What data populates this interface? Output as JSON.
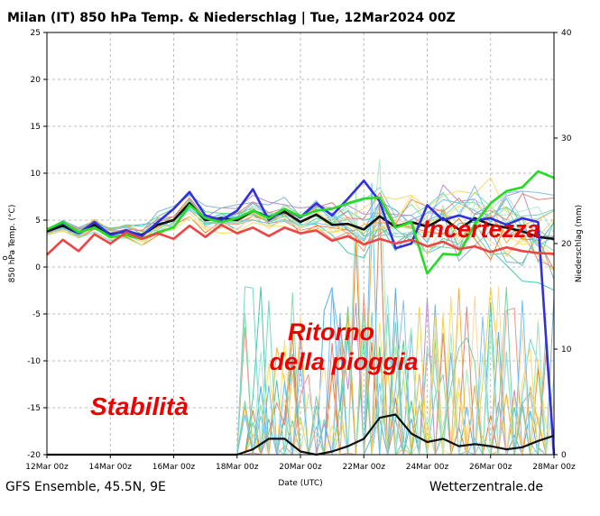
{
  "chart_data": {
    "type": "line",
    "title": "Milan  (IT)  850 hPa Temp. & Niederschlag | Tue, 12Mar2024 00Z",
    "xlabel": "Date (UTC)",
    "ylabel_left": "850 hPa Temp. (°C)",
    "ylabel_left_prefix": "o",
    "ylabel_right": "Niederschlag (mm)",
    "x_ticks": [
      "12Mar 00z",
      "14Mar 00z",
      "16Mar 00z",
      "18Mar 00z",
      "20Mar 00z",
      "22Mar 00z",
      "24Mar 00z",
      "26Mar 00z",
      "28Mar 00z"
    ],
    "x_range_days": [
      0,
      16
    ],
    "ylim_left": [
      -20,
      25
    ],
    "ylim_right": [
      0,
      40
    ],
    "y_ticks_left": [
      25,
      20,
      15,
      10,
      5,
      0,
      -5,
      -10,
      -15,
      -20
    ],
    "y_ticks_right": [
      40,
      30,
      20,
      10,
      0
    ],
    "grid": true,
    "series": [
      {
        "role": "mean_temp",
        "color": "#111111",
        "points": [
          [
            0,
            3.8
          ],
          [
            0.5,
            4.4
          ],
          [
            1,
            3.6
          ],
          [
            1.5,
            4.5
          ],
          [
            2,
            3.5
          ],
          [
            2.5,
            3.8
          ],
          [
            3,
            3.4
          ],
          [
            3.5,
            4.5
          ],
          [
            4,
            5.0
          ],
          [
            4.5,
            6.8
          ],
          [
            5,
            5.0
          ],
          [
            5.5,
            5.2
          ],
          [
            6,
            5.0
          ],
          [
            6.5,
            6.0
          ],
          [
            7,
            5.3
          ],
          [
            7.5,
            5.9
          ],
          [
            8,
            4.8
          ],
          [
            8.5,
            5.6
          ],
          [
            9,
            4.5
          ],
          [
            9.5,
            4.6
          ],
          [
            10,
            4.0
          ],
          [
            10.5,
            5.4
          ],
          [
            11,
            4.3
          ],
          [
            11.5,
            4.8
          ],
          [
            12,
            4.3
          ],
          [
            12.5,
            5.2
          ],
          [
            13,
            4.0
          ],
          [
            13.5,
            5.2
          ],
          [
            14,
            4.5
          ],
          [
            14.5,
            4.2
          ],
          [
            15,
            3.8
          ],
          [
            15.5,
            3.2
          ],
          [
            16,
            3.0
          ]
        ]
      },
      {
        "role": "operational",
        "color": "#3030e0",
        "points": [
          [
            0,
            4.0
          ],
          [
            0.5,
            4.7
          ],
          [
            1,
            3.6
          ],
          [
            1.5,
            4.8
          ],
          [
            2,
            3.4
          ],
          [
            2.5,
            3.9
          ],
          [
            3,
            3.3
          ],
          [
            3.5,
            4.8
          ],
          [
            4,
            6.2
          ],
          [
            4.5,
            8.0
          ],
          [
            5,
            5.5
          ],
          [
            5.5,
            5.0
          ],
          [
            6,
            6.0
          ],
          [
            6.5,
            8.3
          ],
          [
            7,
            5.0
          ],
          [
            7.5,
            6.2
          ],
          [
            8,
            5.3
          ],
          [
            8.5,
            6.8
          ],
          [
            9,
            5.5
          ],
          [
            9.5,
            7.3
          ],
          [
            10,
            9.2
          ],
          [
            10.5,
            7.0
          ],
          [
            11,
            2.0
          ],
          [
            11.5,
            2.5
          ],
          [
            12,
            6.6
          ],
          [
            12.5,
            5.0
          ],
          [
            13,
            5.5
          ],
          [
            13.5,
            5.0
          ],
          [
            14,
            5.2
          ],
          [
            14.5,
            4.5
          ],
          [
            15,
            5.2
          ],
          [
            15.5,
            4.8
          ],
          [
            16,
            -20.0
          ]
        ]
      },
      {
        "role": "control",
        "color": "#22dd22",
        "points": [
          [
            0,
            4.0
          ],
          [
            0.5,
            4.8
          ],
          [
            1,
            3.7
          ],
          [
            1.5,
            4.2
          ],
          [
            2,
            3.2
          ],
          [
            2.5,
            3.4
          ],
          [
            3,
            3.0
          ],
          [
            3.5,
            3.7
          ],
          [
            4,
            4.2
          ],
          [
            4.5,
            6.6
          ],
          [
            5,
            5.2
          ],
          [
            5.5,
            4.8
          ],
          [
            6,
            5.2
          ],
          [
            6.5,
            6.0
          ],
          [
            7,
            5.2
          ],
          [
            7.5,
            6.2
          ],
          [
            8,
            5.4
          ],
          [
            8.5,
            6.0
          ],
          [
            9,
            6.2
          ],
          [
            9.5,
            6.8
          ],
          [
            10,
            7.3
          ],
          [
            10.5,
            7.4
          ],
          [
            11,
            4.2
          ],
          [
            11.5,
            4.8
          ],
          [
            12,
            -0.7
          ],
          [
            12.5,
            1.4
          ],
          [
            13,
            1.3
          ],
          [
            13.5,
            4.6
          ],
          [
            14,
            6.8
          ],
          [
            14.5,
            8.1
          ],
          [
            15,
            8.5
          ],
          [
            15.5,
            10.2
          ],
          [
            16,
            9.5
          ]
        ]
      },
      {
        "role": "long_term_mean",
        "color": "#ee4444",
        "points": [
          [
            0,
            1.3
          ],
          [
            0.5,
            2.9
          ],
          [
            1,
            1.7
          ],
          [
            1.5,
            3.5
          ],
          [
            2,
            2.5
          ],
          [
            2.5,
            3.7
          ],
          [
            3,
            3.0
          ],
          [
            3.5,
            3.6
          ],
          [
            4,
            3.0
          ],
          [
            4.5,
            4.4
          ],
          [
            5,
            3.2
          ],
          [
            5.5,
            4.5
          ],
          [
            6,
            3.6
          ],
          [
            6.5,
            4.2
          ],
          [
            7,
            3.3
          ],
          [
            7.5,
            4.2
          ],
          [
            8,
            3.6
          ],
          [
            8.5,
            3.9
          ],
          [
            9,
            2.8
          ],
          [
            9.5,
            3.3
          ],
          [
            10,
            2.4
          ],
          [
            10.5,
            3.0
          ],
          [
            11,
            2.5
          ],
          [
            11.5,
            2.9
          ],
          [
            12,
            2.2
          ],
          [
            12.5,
            2.7
          ],
          [
            13,
            1.9
          ],
          [
            13.5,
            2.2
          ],
          [
            14,
            1.6
          ],
          [
            14.5,
            2.1
          ],
          [
            15,
            1.7
          ],
          [
            15.5,
            1.5
          ],
          [
            16,
            1.4
          ]
        ]
      },
      {
        "role": "mean_precip_mm",
        "color": "#111111",
        "points": [
          [
            0,
            0
          ],
          [
            6,
            0
          ],
          [
            6.5,
            0.5
          ],
          [
            7,
            1.5
          ],
          [
            7.5,
            1.5
          ],
          [
            8,
            0.3
          ],
          [
            8.5,
            0
          ],
          [
            9,
            0.3
          ],
          [
            9.5,
            0.8
          ],
          [
            10,
            1.5
          ],
          [
            10.5,
            3.5
          ],
          [
            11,
            3.8
          ],
          [
            11.5,
            2.0
          ],
          [
            12,
            1.2
          ],
          [
            12.5,
            1.5
          ],
          [
            13,
            0.8
          ],
          [
            13.5,
            1.0
          ],
          [
            14,
            0.8
          ],
          [
            14.5,
            0.5
          ],
          [
            15,
            0.7
          ],
          [
            15.5,
            1.3
          ],
          [
            16,
            1.8
          ]
        ]
      }
    ],
    "annotations": [
      {
        "text": "Stabilità",
        "color": "#ee0000"
      },
      {
        "text": "Ritorno",
        "color": "#ee0000"
      },
      {
        "text": "della pioggia",
        "color": "#ee0000"
      },
      {
        "text": "Incertezza",
        "color": "#ee0000"
      }
    ],
    "footer_left": "GFS Ensemble, 45.5N, 9E",
    "footer_right": "Wetterzentrale.de"
  }
}
